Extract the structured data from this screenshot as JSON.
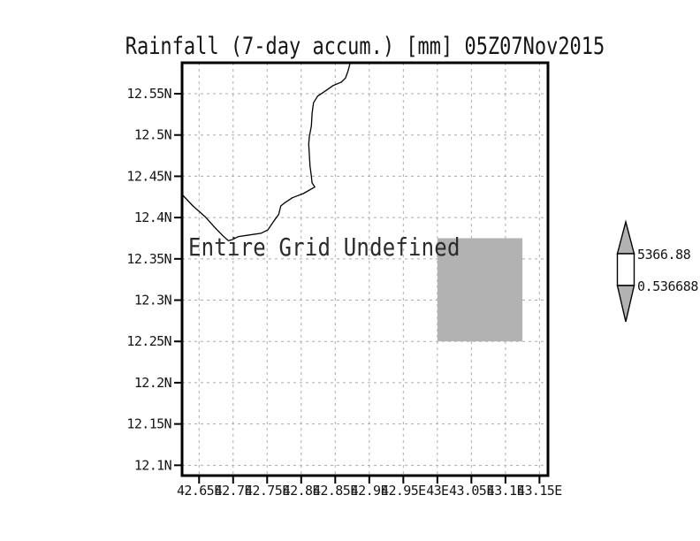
{
  "title": "Rainfall (7-day accum.) [mm] 05Z07Nov2015",
  "annotation": "Entire Grid Undefined",
  "colorbar": {
    "max_label": "5366.88",
    "min_label": "0.536688",
    "fill_color": "#b2b2b2",
    "bar_color": "#ffffff"
  },
  "chart_data": {
    "type": "map",
    "title": "Rainfall (7-day accum.) [mm] 05Z07Nov2015",
    "status_text": "Entire Grid Undefined",
    "x_axis": {
      "range": [
        42.625,
        43.1625
      ],
      "ticks": [
        {
          "label": "42.65E",
          "value": 42.65
        },
        {
          "label": "42.7E",
          "value": 42.7
        },
        {
          "label": "42.75E",
          "value": 42.75
        },
        {
          "label": "42.8E",
          "value": 42.8
        },
        {
          "label": "42.85E",
          "value": 42.85
        },
        {
          "label": "42.9E",
          "value": 42.9
        },
        {
          "label": "42.95E",
          "value": 42.95
        },
        {
          "label": "43E",
          "value": 43.0
        },
        {
          "label": "43.05E",
          "value": 43.05
        },
        {
          "label": "43.1E",
          "value": 43.1
        },
        {
          "label": "43.15E",
          "value": 43.15
        }
      ]
    },
    "y_axis": {
      "range": [
        12.0875,
        12.5875
      ],
      "ticks": [
        {
          "label": "12.55N",
          "value": 12.55
        },
        {
          "label": "12.5N",
          "value": 12.5
        },
        {
          "label": "12.45N",
          "value": 12.45
        },
        {
          "label": "12.4N",
          "value": 12.4
        },
        {
          "label": "12.35N",
          "value": 12.35
        },
        {
          "label": "12.3N",
          "value": 12.3
        },
        {
          "label": "12.25N",
          "value": 12.25
        },
        {
          "label": "12.2N",
          "value": 12.2
        },
        {
          "label": "12.15N",
          "value": 12.15
        },
        {
          "label": "12.1N",
          "value": 12.1
        }
      ]
    },
    "grid": {
      "visible": true,
      "style": "dash-dot",
      "color": "#ababab"
    },
    "shaded_cell": {
      "lon": [
        43.0,
        43.125
      ],
      "lat": [
        12.25,
        12.375
      ],
      "color": "#b2b2b2"
    },
    "colorbar": {
      "levels": [
        0.536688,
        5366.88
      ],
      "labels": [
        "5366.88",
        "0.536688"
      ],
      "triangle_color": "#b2b2b2"
    },
    "coastline_lonlat": [
      [
        42.872,
        12.5875
      ],
      [
        42.869,
        12.578
      ],
      [
        42.865,
        12.569
      ],
      [
        42.859,
        12.564
      ],
      [
        42.847,
        12.56
      ],
      [
        42.835,
        12.553
      ],
      [
        42.824,
        12.547
      ],
      [
        42.818,
        12.539
      ],
      [
        42.816,
        12.526
      ],
      [
        42.815,
        12.511
      ],
      [
        42.812,
        12.498
      ],
      [
        42.811,
        12.489
      ],
      [
        42.812,
        12.476
      ],
      [
        42.813,
        12.462
      ],
      [
        42.815,
        12.45
      ],
      [
        42.816,
        12.442
      ],
      [
        42.82,
        12.437
      ],
      [
        42.803,
        12.429
      ],
      [
        42.787,
        12.424
      ],
      [
        42.776,
        12.418
      ],
      [
        42.77,
        12.414
      ],
      [
        42.767,
        12.404
      ],
      [
        42.76,
        12.396
      ],
      [
        42.751,
        12.385
      ],
      [
        42.741,
        12.381
      ],
      [
        42.725,
        12.379
      ],
      [
        42.708,
        12.377
      ],
      [
        42.698,
        12.373
      ],
      [
        42.693,
        12.372
      ],
      [
        42.685,
        12.378
      ],
      [
        42.673,
        12.388
      ],
      [
        42.659,
        12.401
      ],
      [
        42.641,
        12.414
      ],
      [
        42.625,
        12.428
      ]
    ]
  }
}
